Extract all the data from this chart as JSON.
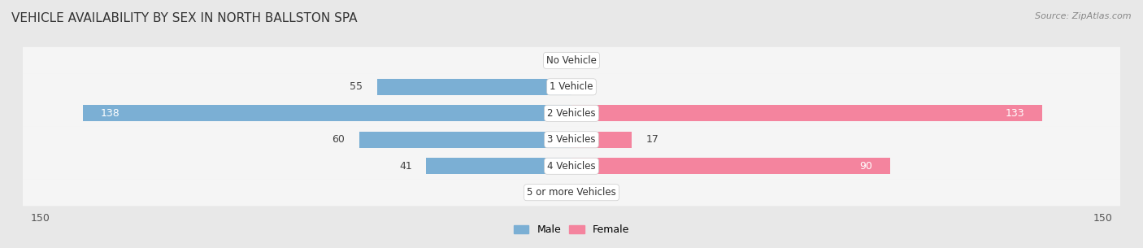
{
  "title": "VEHICLE AVAILABILITY BY SEX IN NORTH BALLSTON SPA",
  "source": "Source: ZipAtlas.com",
  "categories": [
    "No Vehicle",
    "1 Vehicle",
    "2 Vehicles",
    "3 Vehicles",
    "4 Vehicles",
    "5 or more Vehicles"
  ],
  "male_values": [
    0,
    55,
    138,
    60,
    41,
    0
  ],
  "female_values": [
    0,
    0,
    133,
    17,
    90,
    0
  ],
  "male_color": "#7bafd4",
  "female_color": "#f4849e",
  "bar_height": 0.62,
  "xlim": [
    -150,
    150
  ],
  "background_color": "#e8e8e8",
  "row_bg_color": "#f5f5f5",
  "title_fontsize": 11,
  "label_fontsize": 9,
  "tick_fontsize": 9,
  "source_fontsize": 8
}
